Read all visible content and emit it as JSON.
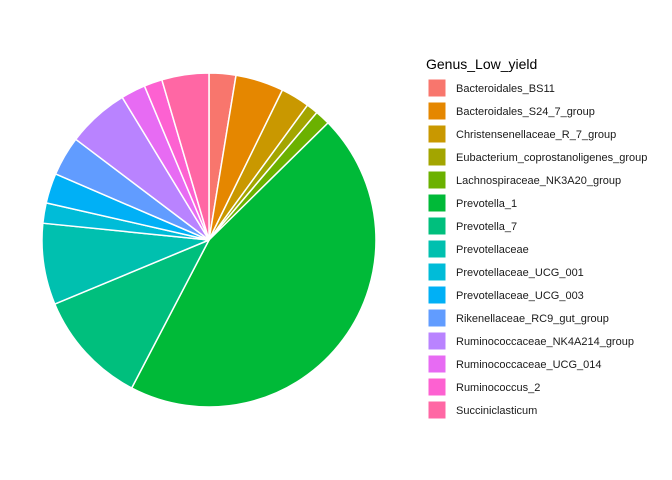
{
  "chart_data": {
    "type": "pie",
    "legend_title": "Genus_Low_yield",
    "legend_position": "right",
    "start": "top",
    "direction": "clockwise",
    "grid": false,
    "slices": [
      {
        "label": "Bacteroidales_BS11",
        "value": 2.5,
        "color": "#F8766D"
      },
      {
        "label": "Bacteroidales_S24_7_group",
        "value": 4.5,
        "color": "#E58700"
      },
      {
        "label": "Christensenellaceae_R_7_group",
        "value": 2.7,
        "color": "#C99800"
      },
      {
        "label": "Eubacterium_coprostanoligenes_group",
        "value": 1.1,
        "color": "#A3A500"
      },
      {
        "label": "Lachnospiraceae_NK3A20_group",
        "value": 1.4,
        "color": "#6BB100"
      },
      {
        "label": "Prevotella_1",
        "value": 43.5,
        "color": "#00BA38"
      },
      {
        "label": "Prevotella_7",
        "value": 10.7,
        "color": "#00BF7D"
      },
      {
        "label": "Prevotellaceae",
        "value": 7.6,
        "color": "#00C0AF"
      },
      {
        "label": "Prevotellaceae_UCG_001",
        "value": 1.9,
        "color": "#00BCD8"
      },
      {
        "label": "Prevotellaceae_UCG_003",
        "value": 2.8,
        "color": "#00B0F6"
      },
      {
        "label": "Rikenellaceae_RC9_gut_group",
        "value": 3.7,
        "color": "#619CFF"
      },
      {
        "label": "Ruminococcaceae_NK4A214_group",
        "value": 5.8,
        "color": "#B983FF"
      },
      {
        "label": "Ruminococcaceae_UCG_014",
        "value": 2.3,
        "color": "#E76BF3"
      },
      {
        "label": "Ruminococcus_2",
        "value": 1.7,
        "color": "#FD61D1"
      },
      {
        "label": "Succiniclasticum",
        "value": 4.4,
        "color": "#FF67A4"
      }
    ]
  }
}
